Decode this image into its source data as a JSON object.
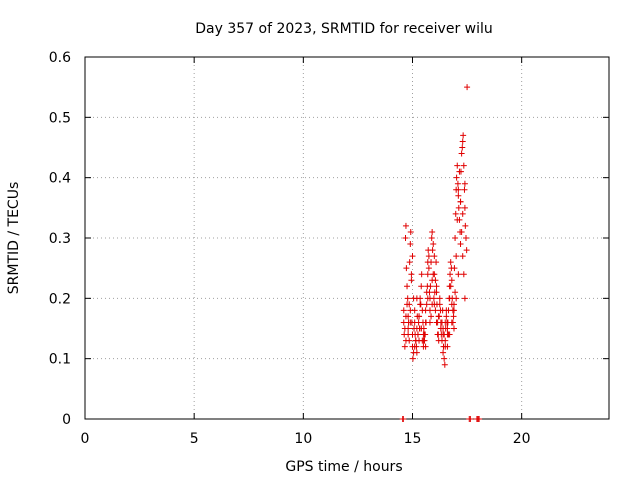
{
  "chart_data": {
    "type": "scatter",
    "title": "Day 357 of 2023, SRMTID for receiver wilu",
    "xlabel": "GPS time / hours",
    "ylabel": "SRMTID / TECUs",
    "xlim": [
      0,
      24
    ],
    "ylim": [
      0,
      0.6
    ],
    "x_ticks": [
      0,
      5,
      10,
      15,
      20
    ],
    "y_ticks": [
      0,
      0.1,
      0.2,
      0.3,
      0.4,
      0.5,
      0.6
    ],
    "x_tick_labels": [
      "0",
      "5",
      "10",
      "15",
      "20"
    ],
    "y_tick_labels": [
      "0",
      "0.1",
      "0.2",
      "0.3",
      "0.4",
      "0.5",
      "0.6"
    ],
    "grid": true,
    "marker": "+",
    "series": [
      {
        "name": "SRMTID",
        "color": "#e00000",
        "x": [
          14.6,
          14.6,
          14.62,
          14.65,
          14.68,
          14.7,
          14.72,
          14.75,
          14.78,
          14.8,
          14.82,
          14.85,
          14.87,
          14.9,
          14.92,
          14.95,
          14.97,
          15.0,
          15.02,
          15.05,
          15.07,
          15.1,
          15.12,
          15.15,
          15.18,
          15.2,
          15.22,
          15.25,
          15.28,
          15.3,
          15.32,
          15.35,
          15.38,
          15.4,
          15.42,
          15.45,
          15.48,
          15.5,
          15.52,
          15.55,
          15.58,
          15.6,
          15.62,
          15.65,
          15.68,
          15.7,
          15.72,
          15.75,
          15.78,
          15.8,
          15.82,
          15.85,
          15.88,
          15.9,
          15.92,
          15.95,
          15.98,
          16.0,
          16.02,
          16.05,
          16.08,
          16.1,
          16.12,
          16.15,
          16.18,
          16.2,
          16.22,
          16.25,
          16.28,
          16.3,
          16.32,
          16.35,
          16.38,
          16.4,
          16.42,
          16.45,
          16.48,
          16.5,
          16.52,
          16.55,
          16.58,
          16.6,
          16.62,
          16.65,
          16.68,
          16.7,
          16.72,
          16.75,
          16.78,
          16.8,
          16.82,
          16.85,
          16.88,
          16.9,
          16.92,
          16.95,
          16.98,
          17.0,
          17.02,
          17.05,
          17.08,
          17.1,
          17.12,
          17.15,
          17.18,
          17.2,
          17.22,
          17.25,
          17.28,
          17.3,
          17.32,
          17.35,
          17.38,
          17.4,
          17.42,
          17.45,
          17.48,
          17.5,
          14.65,
          14.7,
          14.75,
          14.8,
          14.85,
          14.9,
          14.95,
          15.0,
          15.05,
          15.1,
          15.15,
          15.2,
          15.25,
          15.3,
          15.35,
          15.4,
          15.45,
          15.5,
          15.55,
          15.6,
          15.65,
          15.7,
          15.75,
          15.8,
          15.85,
          15.9,
          15.95,
          16.0,
          16.05,
          16.1,
          16.15,
          16.2,
          16.25,
          16.3,
          16.35,
          16.4,
          16.45,
          16.5,
          16.55,
          16.6,
          16.65,
          16.7,
          16.75,
          16.8,
          16.85,
          16.9,
          16.95,
          17.0,
          17.05,
          17.1,
          17.15,
          17.2,
          17.25,
          17.3,
          17.35,
          17.4,
          14.7,
          14.8,
          14.9,
          15.0,
          15.1,
          15.2,
          15.3,
          15.4,
          15.5,
          15.6,
          15.7,
          15.8,
          15.9,
          16.0,
          16.1,
          16.2,
          16.3,
          16.4,
          16.5,
          16.6,
          16.7,
          16.8,
          16.9,
          17.0,
          17.1,
          17.2,
          17.3,
          17.4,
          14.55,
          14.58,
          17.6,
          17.65,
          17.95,
          18.0,
          18.05
        ],
        "y": [
          0.18,
          0.16,
          0.14,
          0.12,
          0.3,
          0.32,
          0.25,
          0.22,
          0.2,
          0.17,
          0.16,
          0.19,
          0.26,
          0.29,
          0.31,
          0.24,
          0.16,
          0.12,
          0.1,
          0.11,
          0.15,
          0.18,
          0.14,
          0.13,
          0.12,
          0.15,
          0.17,
          0.14,
          0.16,
          0.13,
          0.15,
          0.2,
          0.19,
          0.22,
          0.24,
          0.18,
          0.16,
          0.14,
          0.15,
          0.13,
          0.14,
          0.12,
          0.16,
          0.19,
          0.22,
          0.26,
          0.28,
          0.25,
          0.21,
          0.18,
          0.22,
          0.26,
          0.3,
          0.31,
          0.28,
          0.24,
          0.2,
          0.19,
          0.21,
          0.23,
          0.26,
          0.22,
          0.19,
          0.16,
          0.14,
          0.13,
          0.17,
          0.2,
          0.18,
          0.15,
          0.14,
          0.16,
          0.18,
          0.14,
          0.12,
          0.1,
          0.09,
          0.12,
          0.15,
          0.17,
          0.16,
          0.14,
          0.16,
          0.18,
          0.2,
          0.22,
          0.24,
          0.26,
          0.25,
          0.23,
          0.2,
          0.18,
          0.17,
          0.19,
          0.25,
          0.3,
          0.34,
          0.38,
          0.4,
          0.42,
          0.39,
          0.37,
          0.35,
          0.33,
          0.31,
          0.36,
          0.41,
          0.44,
          0.45,
          0.46,
          0.47,
          0.42,
          0.38,
          0.35,
          0.32,
          0.3,
          0.28,
          0.55,
          0.15,
          0.17,
          0.19,
          0.14,
          0.13,
          0.18,
          0.23,
          0.27,
          0.2,
          0.16,
          0.13,
          0.11,
          0.14,
          0.17,
          0.19,
          0.15,
          0.13,
          0.12,
          0.14,
          0.16,
          0.21,
          0.24,
          0.27,
          0.2,
          0.17,
          0.23,
          0.29,
          0.27,
          0.18,
          0.16,
          0.14,
          0.17,
          0.19,
          0.15,
          0.13,
          0.11,
          0.14,
          0.16,
          0.18,
          0.12,
          0.14,
          0.2,
          0.22,
          0.19,
          0.16,
          0.15,
          0.21,
          0.27,
          0.33,
          0.38,
          0.41,
          0.36,
          0.31,
          0.27,
          0.24,
          0.2,
          0.13,
          0.15,
          0.16,
          0.14,
          0.12,
          0.2,
          0.17,
          0.15,
          0.13,
          0.18,
          0.2,
          0.16,
          0.19,
          0.24,
          0.21,
          0.17,
          0.16,
          0.15,
          0.13,
          0.15,
          0.14,
          0.16,
          0.18,
          0.2,
          0.24,
          0.29,
          0.34,
          0.39,
          0.0,
          0.0,
          0.0,
          0.0,
          0.0,
          0.0,
          0.0
        ]
      }
    ]
  }
}
